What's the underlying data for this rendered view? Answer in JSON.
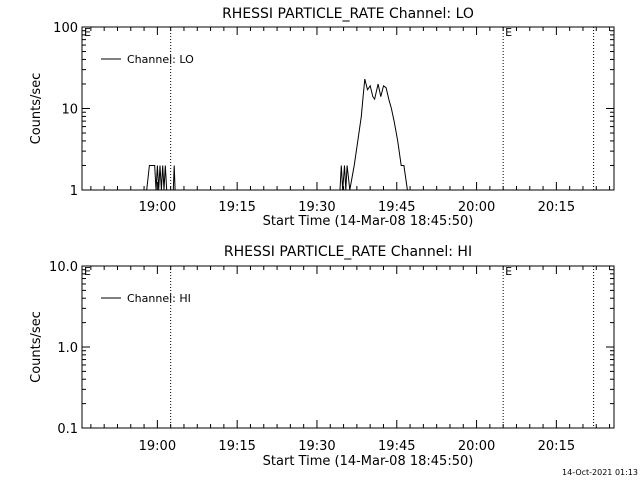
{
  "footer": {
    "date_stamp": "14-Oct-2021 01:13"
  },
  "chart_data": [
    {
      "type": "line",
      "title": "RHESSI PARTICLE_RATE Channel: LO",
      "xlabel": "Start Time (14-Mar-08 18:45:50)",
      "ylabel": "Counts/sec",
      "yscale": "log",
      "xlim": [
        "18:45:50",
        "20:25:50"
      ],
      "ylim": [
        1,
        100
      ],
      "x_ticks": [
        "19:00",
        "19:15",
        "19:30",
        "19:45",
        "20:00",
        "20:15"
      ],
      "y_ticks": [
        "1",
        "10",
        "100"
      ],
      "grid": false,
      "legend": {
        "position": "top-left",
        "entries": [
          "Channel: LO"
        ]
      },
      "vlines": [
        {
          "x": "19:02:30",
          "label": ""
        },
        {
          "x": "20:05:00",
          "label": "E"
        },
        {
          "x": "20:22:00",
          "label": ""
        }
      ],
      "corner_label": "E",
      "series": [
        {
          "name": "Channel: LO",
          "x": [
            "18:58:00",
            "18:58:30",
            "18:59:30",
            "18:59:45",
            "19:00:00",
            "19:00:15",
            "19:00:30",
            "19:00:45",
            "19:01:00",
            "19:01:15",
            "19:01:30",
            "19:01:45",
            "19:03:00",
            "19:03:10",
            "19:03:20",
            "19:34:20",
            "19:34:35",
            "19:34:50",
            "19:35:10",
            "19:35:25",
            "19:35:40",
            "19:36:10",
            "19:37:00",
            "19:37:40",
            "19:38:20",
            "19:38:40",
            "19:39:00",
            "19:39:30",
            "19:40:00",
            "19:40:30",
            "19:40:50",
            "19:41:30",
            "19:42:00",
            "19:42:30",
            "19:43:00",
            "19:43:30",
            "19:44:00",
            "19:44:30",
            "19:45:10",
            "19:45:50",
            "19:46:20",
            "19:47:00",
            "19:48:00",
            "19:48:30"
          ],
          "values": [
            1,
            2,
            2,
            1,
            2,
            1,
            2,
            1,
            2,
            1,
            2,
            1,
            1,
            2,
            1,
            1,
            2,
            1,
            2,
            1,
            2,
            1,
            2,
            4,
            8,
            14,
            23,
            17,
            19,
            14,
            13,
            20,
            14,
            19,
            18,
            13,
            10,
            7,
            4,
            2,
            2,
            1,
            1,
            1
          ]
        }
      ]
    },
    {
      "type": "line",
      "title": "RHESSI PARTICLE_RATE Channel: HI",
      "xlabel": "Start Time (14-Mar-08 18:45:50)",
      "ylabel": "Counts/sec",
      "yscale": "log",
      "xlim": [
        "18:45:50",
        "20:25:50"
      ],
      "ylim": [
        0.1,
        10
      ],
      "x_ticks": [
        "19:00",
        "19:15",
        "19:30",
        "19:45",
        "20:00",
        "20:15"
      ],
      "y_ticks": [
        "0.1",
        "1.0",
        "10.0"
      ],
      "grid": false,
      "legend": {
        "position": "top-left",
        "entries": [
          "Channel: HI"
        ]
      },
      "vlines": [
        {
          "x": "19:02:30",
          "label": ""
        },
        {
          "x": "20:05:00",
          "label": "E"
        },
        {
          "x": "20:22:00",
          "label": ""
        }
      ],
      "corner_label": "E",
      "series": [
        {
          "name": "Channel: HI",
          "x": [],
          "values": []
        }
      ]
    }
  ]
}
